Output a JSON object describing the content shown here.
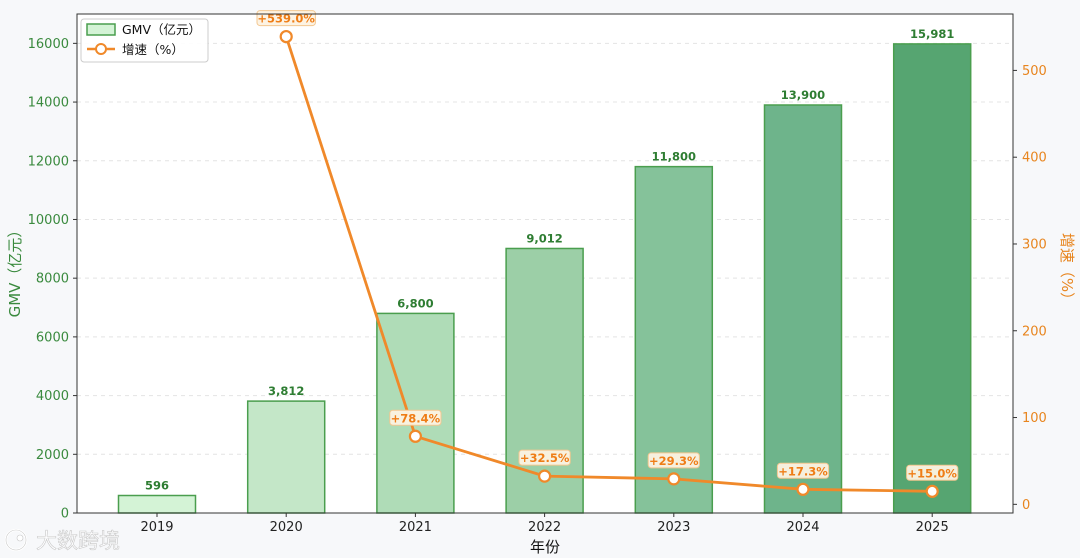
{
  "chart_data": {
    "type": "bar",
    "categories": [
      "2019",
      "2020",
      "2021",
      "2022",
      "2023",
      "2024",
      "2025"
    ],
    "series": [
      {
        "name": "GMV（亿元）",
        "type": "bar",
        "axis": "left",
        "values": [
          596,
          3812,
          6800,
          9012,
          11800,
          13900,
          15981
        ],
        "labels": [
          "596",
          "3,812",
          "6,800",
          "9,012",
          "11,800",
          "13,900",
          "15,981"
        ]
      },
      {
        "name": "增速（%）",
        "type": "line",
        "axis": "right",
        "values": [
          null,
          539.0,
          78.4,
          32.5,
          29.3,
          17.3,
          15.0
        ],
        "labels": [
          "",
          "+539.0%",
          "+78.4%",
          "+32.5%",
          "+29.3%",
          "+17.3%",
          "+15.0%"
        ]
      }
    ],
    "xlabel": "年份",
    "ylabel": "GMV（亿元）",
    "y2label": "增速（%）",
    "ylim": [
      0,
      17000
    ],
    "yticks": [
      0,
      2000,
      4000,
      6000,
      8000,
      10000,
      12000,
      14000,
      16000
    ],
    "y2lim": [
      -10,
      565
    ],
    "y2ticks": [
      0,
      100,
      200,
      300,
      400,
      500
    ],
    "grid": true,
    "legend": "top-left",
    "colors": {
      "bar_fills": [
        "#d4f3d6",
        "#c4e7c8",
        "#afdcb7",
        "#9ccfa7",
        "#85c29a",
        "#6eb48b",
        "#56a571"
      ],
      "bar_edge": "#4a9e4e",
      "line": "#f0892a",
      "left_axis": "#3a8a3e",
      "right_axis": "#e8851e"
    }
  },
  "watermark": {
    "text": "大数跨境"
  }
}
